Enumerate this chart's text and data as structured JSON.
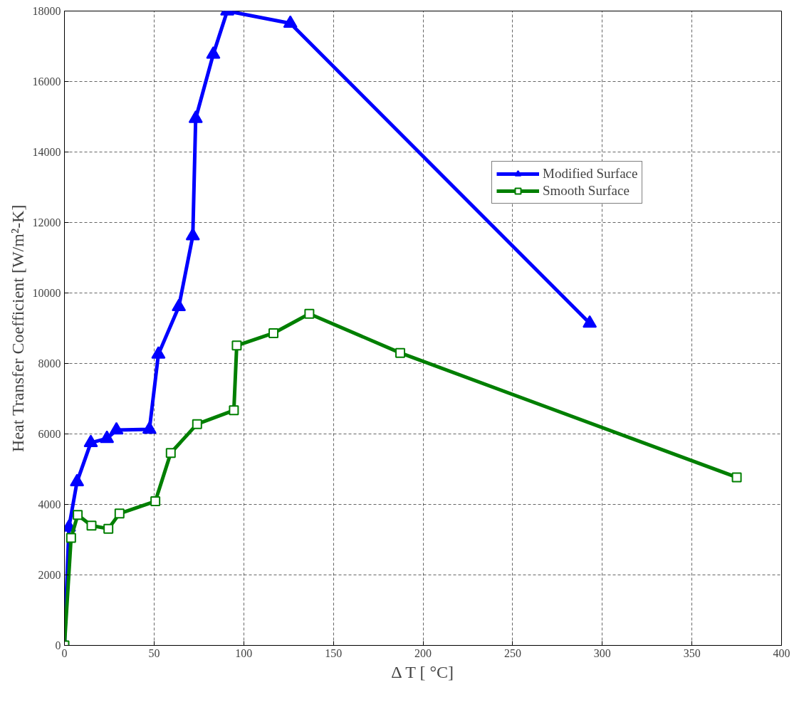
{
  "chart_data": {
    "type": "line",
    "xlabel": "Δ T [ °C]",
    "ylabel": "Heat Transfer Coefficient [W/m²-K]",
    "xlim": [
      0,
      400
    ],
    "ylim": [
      0,
      18000
    ],
    "xticks": [
      0,
      50,
      100,
      150,
      200,
      250,
      300,
      350,
      400
    ],
    "yticks": [
      0,
      2000,
      4000,
      6000,
      8000,
      10000,
      12000,
      14000,
      16000,
      18000
    ],
    "grid": true,
    "legend": "top right",
    "line_style": "solid",
    "series": [
      {
        "name": "Modified Surface",
        "color": "#0000ff",
        "marker": "triangle",
        "x": [
          0,
          2.5,
          7,
          14.7,
          23.7,
          29,
          47.4,
          52.4,
          63.8,
          71.6,
          73.2,
          83,
          90.8,
          126,
          293
        ],
        "values": [
          0,
          3350,
          4640,
          5750,
          5870,
          6110,
          6130,
          8260,
          9610,
          11620,
          14950,
          16770,
          18000,
          17650,
          9140
        ]
      },
      {
        "name": "Smooth Surface",
        "color": "#007f00",
        "marker": "square",
        "x": [
          0,
          3.7,
          7.4,
          15.1,
          24.5,
          30.7,
          50.7,
          59.3,
          74,
          94.5,
          96.1,
          116.6,
          136.6,
          187.3,
          375
        ],
        "values": [
          0,
          3050,
          3700,
          3400,
          3310,
          3740,
          4090,
          5460,
          6280,
          6670,
          8510,
          8860,
          9410,
          8300,
          4770
        ]
      }
    ]
  }
}
